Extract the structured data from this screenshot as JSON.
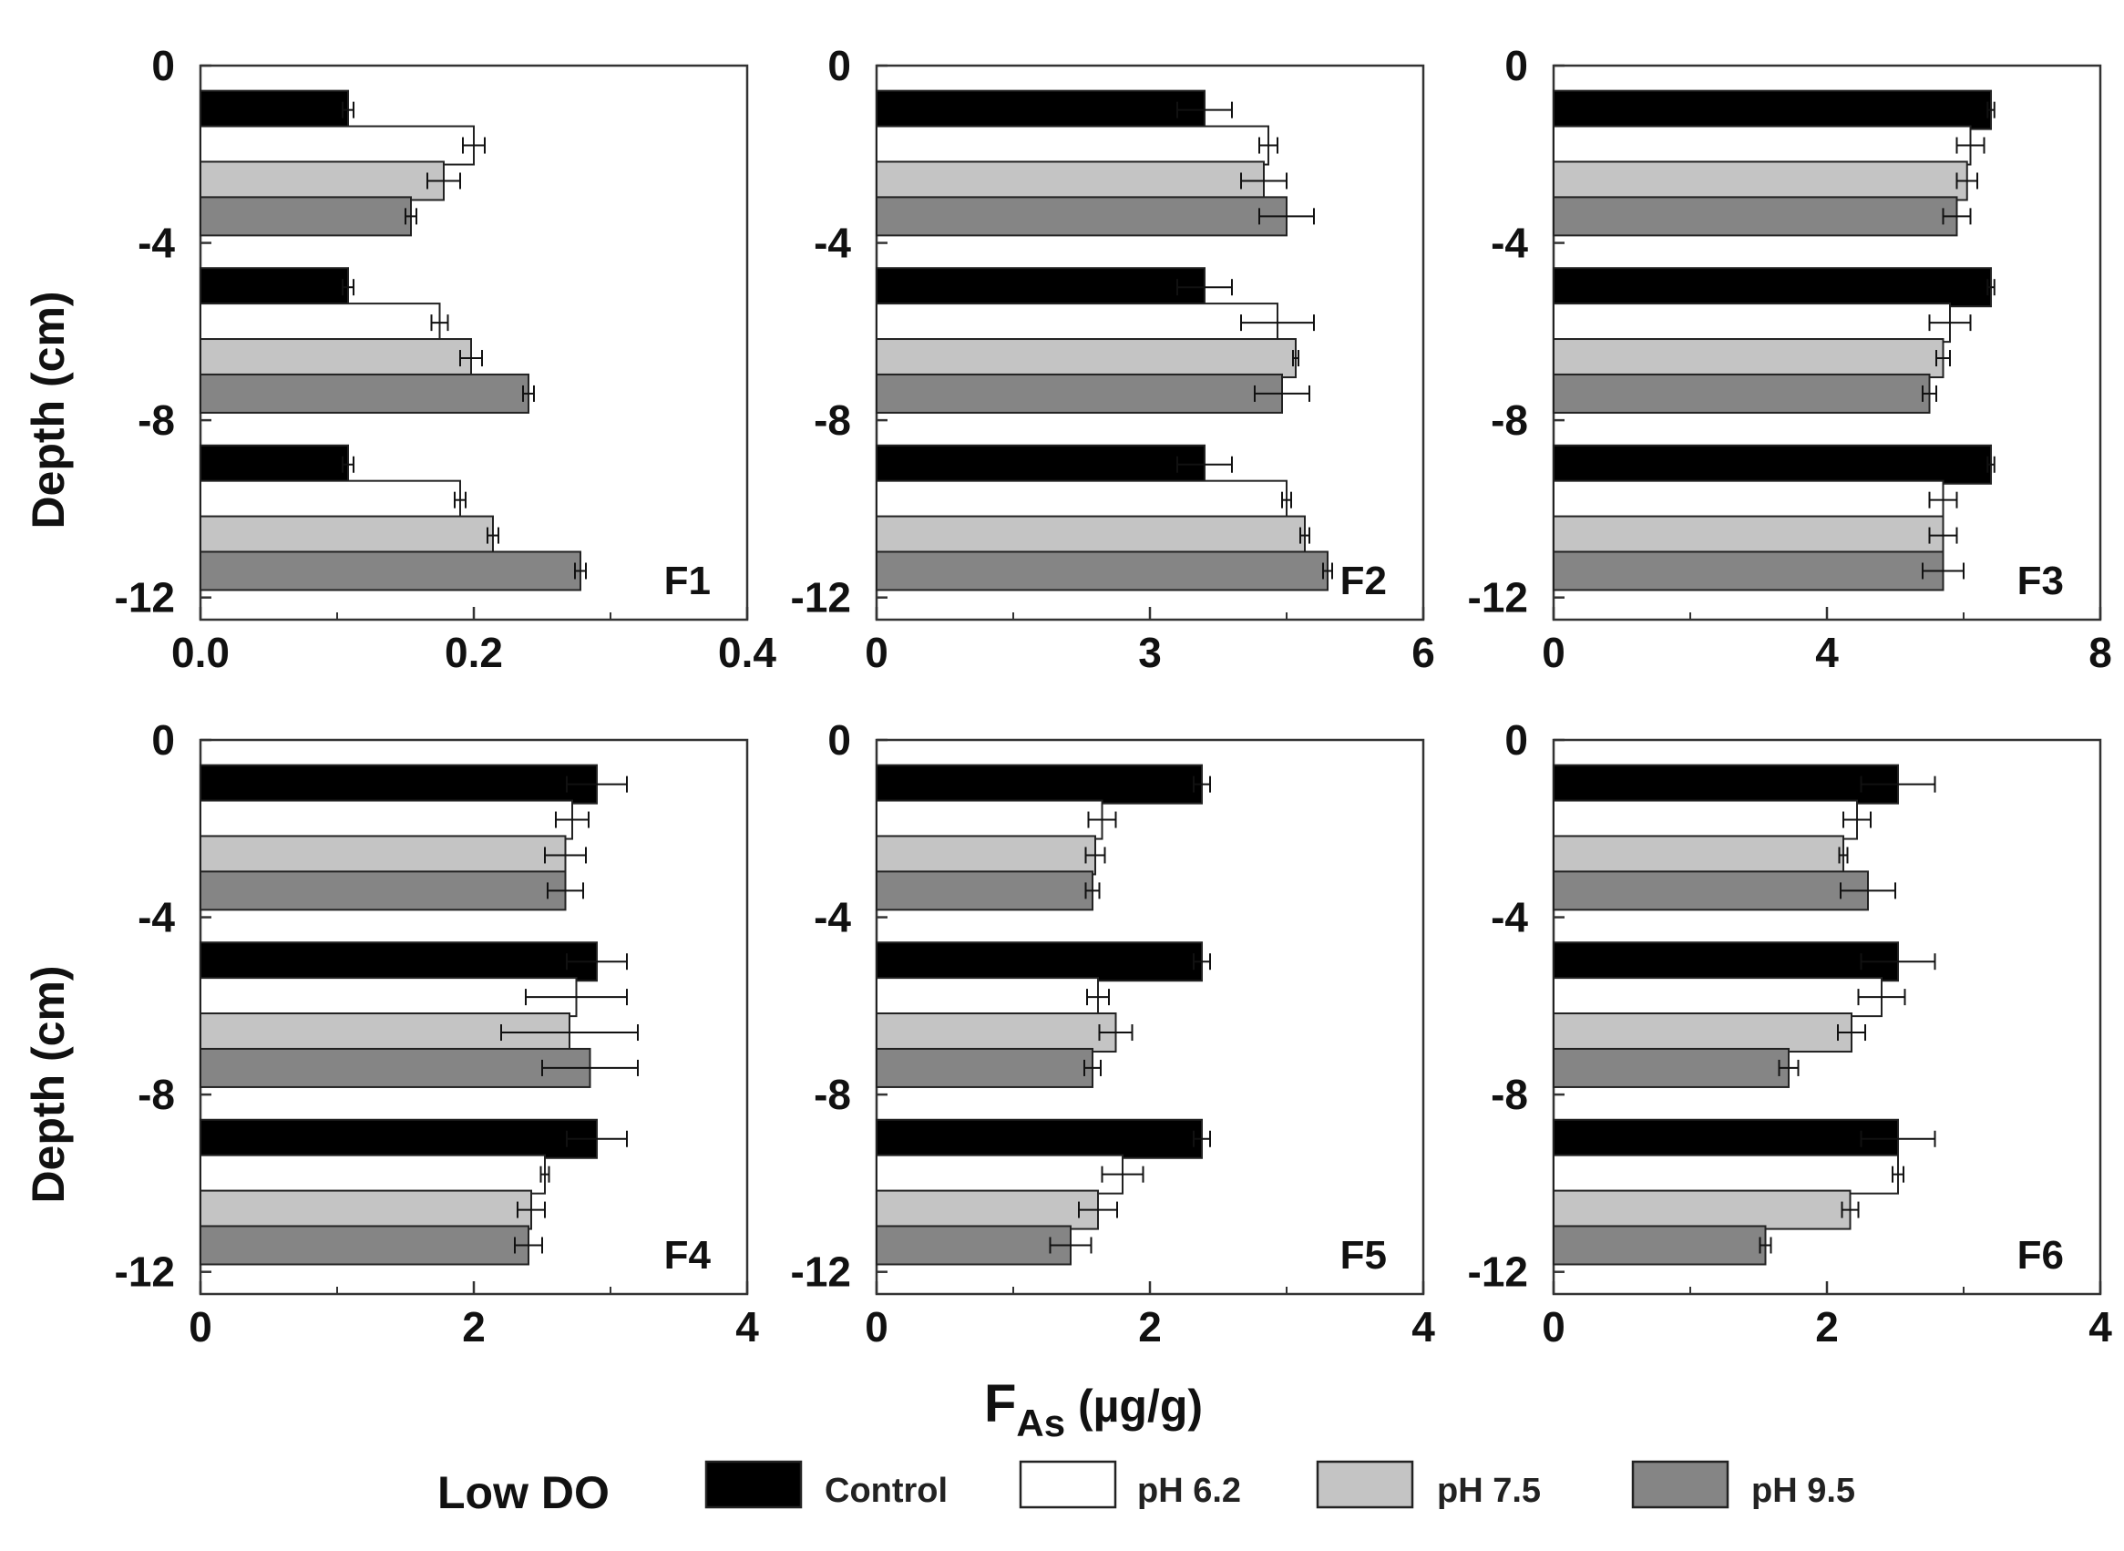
{
  "y_axis_title": "Depth  (cm)",
  "x_axis_title": {
    "main": "F",
    "sub": "As",
    "unit": " (µg/g)"
  },
  "legend": {
    "title": "Low DO",
    "items": [
      {
        "label": "Control",
        "color": "#000000"
      },
      {
        "label": "pH 6.2",
        "color": "#ffffff"
      },
      {
        "label": "pH 7.5",
        "color": "#c4c4c4"
      },
      {
        "label": "pH 9.5",
        "color": "#858585"
      }
    ]
  },
  "chart_data": [
    {
      "type": "bar",
      "orientation": "horizontal",
      "panel": "F1",
      "xlim": [
        0,
        0.4
      ],
      "xticks": [
        "0.0",
        "0.2",
        "0.4"
      ],
      "xtick_values": [
        0,
        0.2,
        0.4
      ],
      "ylim": [
        -12.5,
        0
      ],
      "yticks": [
        "0",
        "-4",
        "-8",
        "-12"
      ],
      "ytick_values": [
        0,
        -4,
        -8,
        -12
      ],
      "groups": [
        {
          "depth": "0 to -4",
          "bars": [
            {
              "series": "Control",
              "depth": -1,
              "value": 0.108,
              "error": 0.004
            },
            {
              "series": "pH 6.2",
              "depth": -1.8,
              "value": 0.2,
              "error": 0.008
            },
            {
              "series": "pH 7.5",
              "depth": -2.6,
              "value": 0.178,
              "error": 0.012
            },
            {
              "series": "pH 9.5",
              "depth": -3.4,
              "value": 0.154,
              "error": 0.004
            }
          ]
        },
        {
          "depth": "-4 to -8",
          "bars": [
            {
              "series": "Control",
              "depth": -5,
              "value": 0.108,
              "error": 0.004
            },
            {
              "series": "pH 6.2",
              "depth": -5.8,
              "value": 0.175,
              "error": 0.006
            },
            {
              "series": "pH 7.5",
              "depth": -6.6,
              "value": 0.198,
              "error": 0.008
            },
            {
              "series": "pH 9.5",
              "depth": -7.4,
              "value": 0.24,
              "error": 0.004
            }
          ]
        },
        {
          "depth": "-8 to -12",
          "bars": [
            {
              "series": "Control",
              "depth": -9,
              "value": 0.108,
              "error": 0.004
            },
            {
              "series": "pH 6.2",
              "depth": -9.8,
              "value": 0.19,
              "error": 0.004
            },
            {
              "series": "pH 7.5",
              "depth": -10.6,
              "value": 0.214,
              "error": 0.004
            },
            {
              "series": "pH 9.5",
              "depth": -11.4,
              "value": 0.278,
              "error": 0.004
            }
          ]
        }
      ]
    },
    {
      "type": "bar",
      "orientation": "horizontal",
      "panel": "F2",
      "xlim": [
        0,
        6
      ],
      "xticks": [
        "0",
        "3",
        "6"
      ],
      "xtick_values": [
        0,
        3,
        6
      ],
      "ylim": [
        -12.5,
        0
      ],
      "yticks": [
        "0",
        "-4",
        "-8",
        "-12"
      ],
      "ytick_values": [
        0,
        -4,
        -8,
        -12
      ],
      "groups": [
        {
          "depth": "0 to -4",
          "bars": [
            {
              "series": "Control",
              "depth": -1,
              "value": 3.6,
              "error": 0.3
            },
            {
              "series": "pH 6.2",
              "depth": -1.8,
              "value": 4.3,
              "error": 0.1
            },
            {
              "series": "pH 7.5",
              "depth": -2.6,
              "value": 4.25,
              "error": 0.25
            },
            {
              "series": "pH 9.5",
              "depth": -3.4,
              "value": 4.5,
              "error": 0.3
            }
          ]
        },
        {
          "depth": "-4 to -8",
          "bars": [
            {
              "series": "Control",
              "depth": -5,
              "value": 3.6,
              "error": 0.3
            },
            {
              "series": "pH 6.2",
              "depth": -5.8,
              "value": 4.4,
              "error": 0.4
            },
            {
              "series": "pH 7.5",
              "depth": -6.6,
              "value": 4.6,
              "error": 0.03
            },
            {
              "series": "pH 9.5",
              "depth": -7.4,
              "value": 4.45,
              "error": 0.3
            }
          ]
        },
        {
          "depth": "-8 to -12",
          "bars": [
            {
              "series": "Control",
              "depth": -9,
              "value": 3.6,
              "error": 0.3
            },
            {
              "series": "pH 6.2",
              "depth": -9.8,
              "value": 4.5,
              "error": 0.05
            },
            {
              "series": "pH 7.5",
              "depth": -10.6,
              "value": 4.7,
              "error": 0.05
            },
            {
              "series": "pH 9.5",
              "depth": -11.4,
              "value": 4.95,
              "error": 0.05
            }
          ]
        }
      ]
    },
    {
      "type": "bar",
      "orientation": "horizontal",
      "panel": "F3",
      "xlim": [
        0,
        8
      ],
      "xticks": [
        "0",
        "4",
        "8"
      ],
      "xtick_values": [
        0,
        4,
        8
      ],
      "ylim": [
        -12.5,
        0
      ],
      "yticks": [
        "0",
        "-4",
        "-8",
        "-12"
      ],
      "ytick_values": [
        0,
        -4,
        -8,
        -12
      ],
      "groups": [
        {
          "depth": "0 to -4",
          "bars": [
            {
              "series": "Control",
              "depth": -1,
              "value": 6.4,
              "error": 0.05
            },
            {
              "series": "pH 6.2",
              "depth": -1.8,
              "value": 6.1,
              "error": 0.2
            },
            {
              "series": "pH 7.5",
              "depth": -2.6,
              "value": 6.05,
              "error": 0.15
            },
            {
              "series": "pH 9.5",
              "depth": -3.4,
              "value": 5.9,
              "error": 0.2
            }
          ]
        },
        {
          "depth": "-4 to -8",
          "bars": [
            {
              "series": "Control",
              "depth": -5,
              "value": 6.4,
              "error": 0.05
            },
            {
              "series": "pH 6.2",
              "depth": -5.8,
              "value": 5.8,
              "error": 0.3
            },
            {
              "series": "pH 7.5",
              "depth": -6.6,
              "value": 5.7,
              "error": 0.1
            },
            {
              "series": "pH 9.5",
              "depth": -7.4,
              "value": 5.5,
              "error": 0.1
            }
          ]
        },
        {
          "depth": "-8 to -12",
          "bars": [
            {
              "series": "Control",
              "depth": -9,
              "value": 6.4,
              "error": 0.05
            },
            {
              "series": "pH 6.2",
              "depth": -9.8,
              "value": 5.7,
              "error": 0.2
            },
            {
              "series": "pH 7.5",
              "depth": -10.6,
              "value": 5.7,
              "error": 0.2
            },
            {
              "series": "pH 9.5",
              "depth": -11.4,
              "value": 5.7,
              "error": 0.3
            }
          ]
        }
      ]
    },
    {
      "type": "bar",
      "orientation": "horizontal",
      "panel": "F4",
      "xlim": [
        0,
        4
      ],
      "xticks": [
        "0",
        "2",
        "4"
      ],
      "xtick_values": [
        0,
        2,
        4
      ],
      "ylim": [
        -12.5,
        0
      ],
      "yticks": [
        "0",
        "-4",
        "-8",
        "-12"
      ],
      "ytick_values": [
        0,
        -4,
        -8,
        -12
      ],
      "groups": [
        {
          "depth": "0 to -4",
          "bars": [
            {
              "series": "Control",
              "depth": -1,
              "value": 2.9,
              "error": 0.22
            },
            {
              "series": "pH 6.2",
              "depth": -1.8,
              "value": 2.72,
              "error": 0.12
            },
            {
              "series": "pH 7.5",
              "depth": -2.6,
              "value": 2.67,
              "error": 0.15
            },
            {
              "series": "pH 9.5",
              "depth": -3.4,
              "value": 2.67,
              "error": 0.13
            }
          ]
        },
        {
          "depth": "-4 to -8",
          "bars": [
            {
              "series": "Control",
              "depth": -5,
              "value": 2.9,
              "error": 0.22
            },
            {
              "series": "pH 6.2",
              "depth": -5.8,
              "value": 2.75,
              "error": 0.37
            },
            {
              "series": "pH 7.5",
              "depth": -6.6,
              "value": 2.7,
              "error": 0.5
            },
            {
              "series": "pH 9.5",
              "depth": -7.4,
              "value": 2.85,
              "error": 0.35
            }
          ]
        },
        {
          "depth": "-8 to -12",
          "bars": [
            {
              "series": "Control",
              "depth": -9,
              "value": 2.9,
              "error": 0.22
            },
            {
              "series": "pH 6.2",
              "depth": -9.8,
              "value": 2.52,
              "error": 0.03
            },
            {
              "series": "pH 7.5",
              "depth": -10.6,
              "value": 2.42,
              "error": 0.1
            },
            {
              "series": "pH 9.5",
              "depth": -11.4,
              "value": 2.4,
              "error": 0.1
            }
          ]
        }
      ]
    },
    {
      "type": "bar",
      "orientation": "horizontal",
      "panel": "F5",
      "xlim": [
        0,
        4
      ],
      "xticks": [
        "0",
        "2",
        "4"
      ],
      "xtick_values": [
        0,
        2,
        4
      ],
      "ylim": [
        -12.5,
        0
      ],
      "yticks": [
        "0",
        "-4",
        "-8",
        "-12"
      ],
      "ytick_values": [
        0,
        -4,
        -8,
        -12
      ],
      "groups": [
        {
          "depth": "0 to -4",
          "bars": [
            {
              "series": "Control",
              "depth": -1,
              "value": 2.38,
              "error": 0.06
            },
            {
              "series": "pH 6.2",
              "depth": -1.8,
              "value": 1.65,
              "error": 0.1
            },
            {
              "series": "pH 7.5",
              "depth": -2.6,
              "value": 1.6,
              "error": 0.07
            },
            {
              "series": "pH 9.5",
              "depth": -3.4,
              "value": 1.58,
              "error": 0.05
            }
          ]
        },
        {
          "depth": "-4 to -8",
          "bars": [
            {
              "series": "Control",
              "depth": -5,
              "value": 2.38,
              "error": 0.06
            },
            {
              "series": "pH 6.2",
              "depth": -5.8,
              "value": 1.62,
              "error": 0.08
            },
            {
              "series": "pH 7.5",
              "depth": -6.6,
              "value": 1.75,
              "error": 0.12
            },
            {
              "series": "pH 9.5",
              "depth": -7.4,
              "value": 1.58,
              "error": 0.06
            }
          ]
        },
        {
          "depth": "-8 to -12",
          "bars": [
            {
              "series": "Control",
              "depth": -9,
              "value": 2.38,
              "error": 0.06
            },
            {
              "series": "pH 6.2",
              "depth": -9.8,
              "value": 1.8,
              "error": 0.15
            },
            {
              "series": "pH 7.5",
              "depth": -10.6,
              "value": 1.62,
              "error": 0.14
            },
            {
              "series": "pH 9.5",
              "depth": -11.4,
              "value": 1.42,
              "error": 0.15
            }
          ]
        }
      ]
    },
    {
      "type": "bar",
      "orientation": "horizontal",
      "panel": "F6",
      "xlim": [
        0,
        4
      ],
      "xticks": [
        "0",
        "2",
        "4"
      ],
      "xtick_values": [
        0,
        2,
        4
      ],
      "ylim": [
        -12.5,
        0
      ],
      "yticks": [
        "0",
        "-4",
        "-8",
        "-12"
      ],
      "ytick_values": [
        0,
        -4,
        -8,
        -12
      ],
      "groups": [
        {
          "depth": "0 to -4",
          "bars": [
            {
              "series": "Control",
              "depth": -1,
              "value": 2.52,
              "error": 0.27
            },
            {
              "series": "pH 6.2",
              "depth": -1.8,
              "value": 2.22,
              "error": 0.1
            },
            {
              "series": "pH 7.5",
              "depth": -2.6,
              "value": 2.12,
              "error": 0.03
            },
            {
              "series": "pH 9.5",
              "depth": -3.4,
              "value": 2.3,
              "error": 0.2
            }
          ]
        },
        {
          "depth": "-4 to -8",
          "bars": [
            {
              "series": "Control",
              "depth": -5,
              "value": 2.52,
              "error": 0.27
            },
            {
              "series": "pH 6.2",
              "depth": -5.8,
              "value": 2.4,
              "error": 0.17
            },
            {
              "series": "pH 7.5",
              "depth": -6.6,
              "value": 2.18,
              "error": 0.1
            },
            {
              "series": "pH 9.5",
              "depth": -7.4,
              "value": 1.72,
              "error": 0.07
            }
          ]
        },
        {
          "depth": "-8 to -12",
          "bars": [
            {
              "series": "Control",
              "depth": -9,
              "value": 2.52,
              "error": 0.27
            },
            {
              "series": "pH 6.2",
              "depth": -9.8,
              "value": 2.52,
              "error": 0.04
            },
            {
              "series": "pH 7.5",
              "depth": -10.6,
              "value": 2.17,
              "error": 0.06
            },
            {
              "series": "pH 9.5",
              "depth": -11.4,
              "value": 1.55,
              "error": 0.04
            }
          ]
        }
      ]
    }
  ]
}
